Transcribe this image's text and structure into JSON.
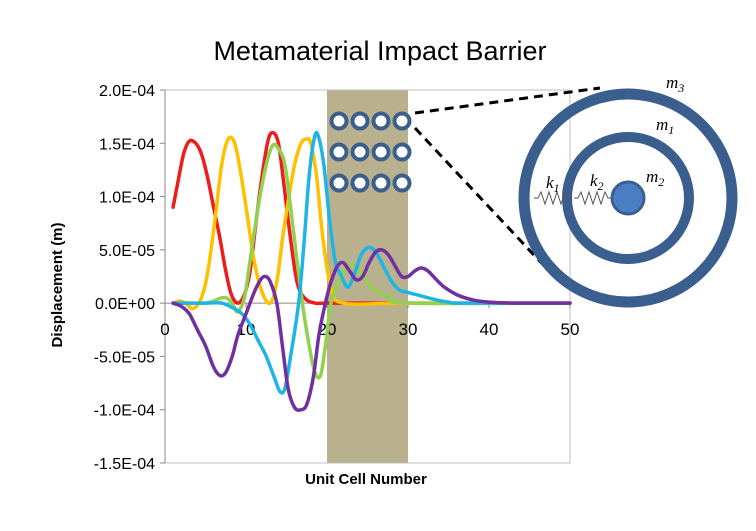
{
  "chart_data": {
    "type": "line",
    "title": "Metamaterial Impact Barrier",
    "xlabel": "Unit Cell Number",
    "ylabel": "Displacement (m)",
    "xlim": [
      0,
      50
    ],
    "ylim": [
      -0.00015,
      0.0002
    ],
    "x_ticks": [
      "0",
      "10",
      "20",
      "30",
      "40",
      "50"
    ],
    "y_ticks": [
      "2.0E-04",
      "1.5E-04",
      "1.0E-04",
      "5.0E-05",
      "0.0E+00",
      "-5.0E-05",
      "-1.0E-04",
      "-1.5E-04"
    ],
    "y_tick_values": [
      0.0002,
      0.00015,
      0.0001,
      5e-05,
      0,
      -5e-05,
      -0.0001,
      -0.00015
    ],
    "grid": false,
    "legend": "none",
    "barrier_region": {
      "x_start": 20,
      "x_end": 30,
      "color": "#b9b18e"
    },
    "series": [
      {
        "color": "#ee1c1c",
        "points": [
          [
            1,
            9e-05
          ],
          [
            1.5,
            0.00011
          ],
          [
            2.3,
            0.00014
          ],
          [
            3,
            0.000152
          ],
          [
            3.8,
            0.00015
          ],
          [
            4.5,
            0.00014
          ],
          [
            5.2,
            0.00012
          ],
          [
            6,
            9e-05
          ],
          [
            6.8,
            6e-05
          ],
          [
            7.5,
            3e-05
          ],
          [
            8.2,
            8e-06
          ],
          [
            9,
            0
          ],
          [
            9.8,
            8e-06
          ],
          [
            10.5,
            3e-05
          ],
          [
            11.3,
            8e-05
          ],
          [
            12,
            0.00012
          ],
          [
            12.7,
            0.000152
          ],
          [
            13.3,
            0.00016
          ],
          [
            14,
            0.00015
          ],
          [
            14.7,
            0.00011
          ],
          [
            15.5,
            6e-05
          ],
          [
            16.3,
            2e-05
          ],
          [
            17.2,
            5e-06
          ],
          [
            18.5,
            0
          ],
          [
            20,
            0
          ],
          [
            30,
            0
          ],
          [
            50,
            0
          ]
        ]
      },
      {
        "color": "#ffc000",
        "points": [
          [
            1,
            0
          ],
          [
            1.8,
            2e-06
          ],
          [
            2.5,
            0
          ],
          [
            3.5,
            -5e-06
          ],
          [
            4.5,
            5e-06
          ],
          [
            5.3,
            3e-05
          ],
          [
            6.2,
            8e-05
          ],
          [
            7,
            0.00013
          ],
          [
            7.8,
            0.000154
          ],
          [
            8.6,
            0.00015
          ],
          [
            9.4,
            0.00012
          ],
          [
            10.2,
            8e-05
          ],
          [
            11,
            4e-05
          ],
          [
            12,
            1e-05
          ],
          [
            13,
            0
          ],
          [
            13.8,
            2e-05
          ],
          [
            14.5,
            6e-05
          ],
          [
            15.3,
            0.0001
          ],
          [
            16,
            0.00013
          ],
          [
            16.8,
            0.00015
          ],
          [
            17.5,
            0.000154
          ],
          [
            18,
            0.00015
          ],
          [
            18.7,
            0.00012
          ],
          [
            19.5,
            6e-05
          ],
          [
            20.5,
            1.5e-05
          ],
          [
            22,
            0
          ],
          [
            30,
            0
          ],
          [
            50,
            0
          ]
        ]
      },
      {
        "color": "#92d050",
        "points": [
          [
            1,
            0
          ],
          [
            3,
            0
          ],
          [
            5,
            0
          ],
          [
            6,
            2e-06
          ],
          [
            7,
            5e-06
          ],
          [
            7.8,
            4e-06
          ],
          [
            8.5,
            -3e-06
          ],
          [
            9,
            -8e-06
          ],
          [
            9.8,
            5e-06
          ],
          [
            10.5,
            4e-05
          ],
          [
            11.5,
            9e-05
          ],
          [
            12.5,
            0.00013
          ],
          [
            13.3,
            0.000148
          ],
          [
            14,
            0.000145
          ],
          [
            14.8,
            0.00013
          ],
          [
            15.5,
            9e-05
          ],
          [
            16.3,
            4e-05
          ],
          [
            17,
            -2e-06
          ],
          [
            17.8,
            -4e-05
          ],
          [
            18.5,
            -6.5e-05
          ],
          [
            19.2,
            -6.8e-05
          ],
          [
            19.8,
            -4e-05
          ],
          [
            20.5,
            0
          ],
          [
            21.5,
            2e-05
          ],
          [
            22.5,
            3.5e-05
          ],
          [
            23.5,
            3.5e-05
          ],
          [
            24.5,
            2.5e-05
          ],
          [
            25.5,
            1.5e-05
          ],
          [
            26.5,
            1e-05
          ],
          [
            28,
            5e-06
          ],
          [
            30,
            0
          ],
          [
            50,
            0
          ]
        ]
      },
      {
        "color": "#1eb4e6",
        "points": [
          [
            1,
            0
          ],
          [
            5,
            0
          ],
          [
            7,
            0
          ],
          [
            8.5,
            -5e-06
          ],
          [
            9.5,
            -1e-05
          ],
          [
            10.5,
            -2e-05
          ],
          [
            11.5,
            -3.5e-05
          ],
          [
            12.5,
            -5e-05
          ],
          [
            13.5,
            -7e-05
          ],
          [
            14.2,
            -8.3e-05
          ],
          [
            14.8,
            -8e-05
          ],
          [
            15.5,
            -5e-05
          ],
          [
            16.5,
            0
          ],
          [
            17.2,
            6e-05
          ],
          [
            17.8,
            0.00012
          ],
          [
            18.5,
            0.000157
          ],
          [
            19,
            0.000155
          ],
          [
            19.6,
            0.00013
          ],
          [
            20.3,
            8e-05
          ],
          [
            21,
            4e-05
          ],
          [
            21.8,
            2.5e-05
          ],
          [
            22.6,
            1.5e-05
          ],
          [
            23.4,
            2.8e-05
          ],
          [
            24.2,
            4.5e-05
          ],
          [
            25,
            5.2e-05
          ],
          [
            25.8,
            5e-05
          ],
          [
            26.6,
            4e-05
          ],
          [
            27.4,
            2.8e-05
          ],
          [
            28.2,
            1.8e-05
          ],
          [
            29,
            1.2e-05
          ],
          [
            30,
            1e-05
          ],
          [
            31,
            8e-06
          ],
          [
            33,
            4e-06
          ],
          [
            35,
            1e-06
          ],
          [
            37,
            0
          ],
          [
            50,
            0
          ]
        ]
      },
      {
        "color": "#7030a0",
        "points": [
          [
            1,
            0
          ],
          [
            2,
            -3e-06
          ],
          [
            3,
            -1e-05
          ],
          [
            4,
            -2.5e-05
          ],
          [
            5,
            -4e-05
          ],
          [
            6,
            -6e-05
          ],
          [
            6.8,
            -6.8e-05
          ],
          [
            7.5,
            -6.5e-05
          ],
          [
            8.3,
            -5e-05
          ],
          [
            9,
            -3e-05
          ],
          [
            10,
            -1e-05
          ],
          [
            11,
            1e-05
          ],
          [
            11.8,
            2.2e-05
          ],
          [
            12.4,
            2.5e-05
          ],
          [
            13,
            2e-05
          ],
          [
            13.8,
            0
          ],
          [
            14.5,
            -4e-05
          ],
          [
            15.2,
            -8e-05
          ],
          [
            16,
            -9.8e-05
          ],
          [
            16.8,
            -0.0001
          ],
          [
            17.5,
            -9.5e-05
          ],
          [
            18.3,
            -7e-05
          ],
          [
            19,
            -3e-05
          ],
          [
            19.8,
            0
          ],
          [
            20.5,
            2e-05
          ],
          [
            21.3,
            3.5e-05
          ],
          [
            22,
            3.8e-05
          ],
          [
            22.8,
            3e-05
          ],
          [
            23.6,
            2.2e-05
          ],
          [
            24.4,
            2.5e-05
          ],
          [
            25.2,
            3.8e-05
          ],
          [
            26,
            4.8e-05
          ],
          [
            26.8,
            5e-05
          ],
          [
            27.6,
            4.5e-05
          ],
          [
            28.4,
            3.5e-05
          ],
          [
            29.2,
            2.5e-05
          ],
          [
            30,
            2.5e-05
          ],
          [
            30.8,
            3e-05
          ],
          [
            31.6,
            3.3e-05
          ],
          [
            32.5,
            3e-05
          ],
          [
            33.5,
            2.2e-05
          ],
          [
            34.5,
            1.5e-05
          ],
          [
            36,
            8e-06
          ],
          [
            38,
            3e-06
          ],
          [
            40,
            1e-06
          ],
          [
            43,
            0
          ],
          [
            50,
            0
          ]
        ]
      }
    ]
  },
  "inset": {
    "labels": {
      "m1": "m",
      "m1_sub": "1",
      "m2": "m",
      "m2_sub": "2",
      "m3": "m",
      "m3_sub": "3",
      "k1": "k",
      "k1_sub": "1",
      "k2": "k",
      "k2_sub": "2"
    },
    "ring_color": "#3a5f8f",
    "core_color": "#4a7fc4"
  }
}
